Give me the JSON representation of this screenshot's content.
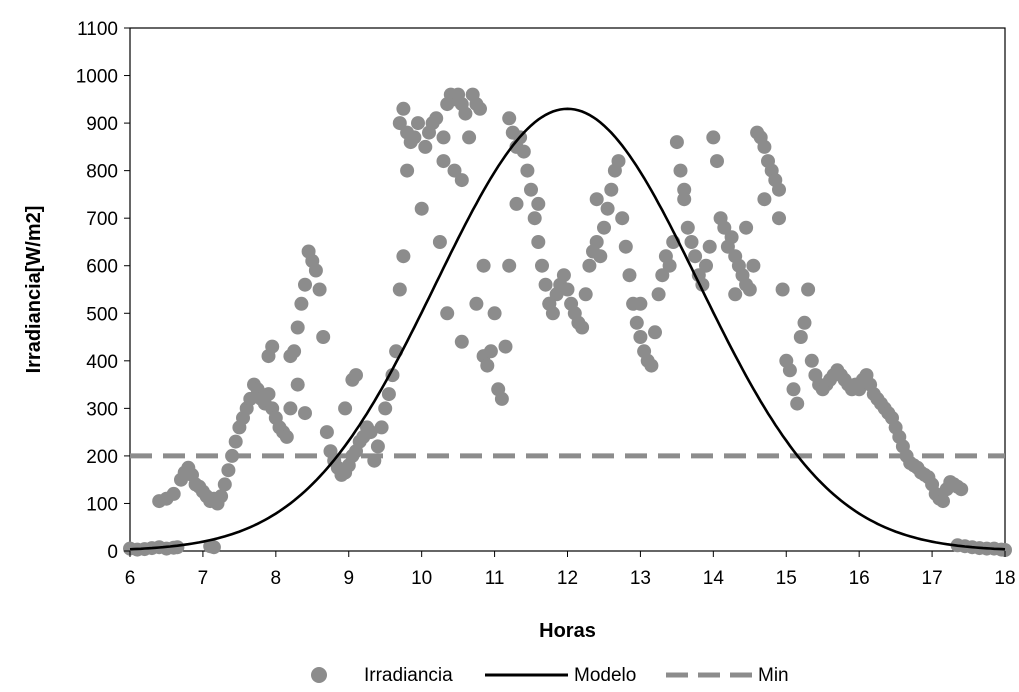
{
  "chart_data": {
    "type": "scatter",
    "title": "",
    "xlabel": "Horas",
    "ylabel": "Irradiancia[W/m2]",
    "xlim": [
      6,
      18
    ],
    "ylim": [
      0,
      1100
    ],
    "x_ticks": [
      "6",
      "7",
      "8",
      "9",
      "10",
      "11",
      "12",
      "13",
      "14",
      "15",
      "16",
      "17",
      "18"
    ],
    "y_ticks": [
      "0",
      "100",
      "200",
      "300",
      "400",
      "500",
      "600",
      "700",
      "800",
      "900",
      "1000",
      "1100"
    ],
    "grid": false,
    "legend_position": "bottom",
    "colors": {
      "points": "#8c8c8c",
      "model": "#000000",
      "min": "#8c8c8c"
    },
    "series": [
      {
        "name": "Irradiancia",
        "kind": "scatter",
        "points": [
          [
            6.0,
            5
          ],
          [
            6.1,
            3
          ],
          [
            6.2,
            4
          ],
          [
            6.3,
            6
          ],
          [
            6.4,
            8
          ],
          [
            6.5,
            5
          ],
          [
            6.6,
            7
          ],
          [
            6.65,
            8
          ],
          [
            6.4,
            105
          ],
          [
            6.5,
            110
          ],
          [
            6.6,
            120
          ],
          [
            6.7,
            150
          ],
          [
            6.75,
            165
          ],
          [
            6.8,
            175
          ],
          [
            6.85,
            160
          ],
          [
            6.9,
            140
          ],
          [
            6.95,
            135
          ],
          [
            7.0,
            125
          ],
          [
            7.05,
            115
          ],
          [
            7.1,
            105
          ],
          [
            7.15,
            110
          ],
          [
            7.2,
            100
          ],
          [
            7.25,
            115
          ],
          [
            7.3,
            140
          ],
          [
            7.35,
            170
          ],
          [
            7.4,
            200
          ],
          [
            7.45,
            230
          ],
          [
            7.5,
            260
          ],
          [
            7.55,
            280
          ],
          [
            7.6,
            300
          ],
          [
            7.65,
            320
          ],
          [
            7.7,
            350
          ],
          [
            7.75,
            340
          ],
          [
            7.8,
            320
          ],
          [
            7.85,
            310
          ],
          [
            7.9,
            330
          ],
          [
            7.95,
            300
          ],
          [
            8.0,
            280
          ],
          [
            8.05,
            260
          ],
          [
            8.1,
            250
          ],
          [
            8.15,
            240
          ],
          [
            8.2,
            300
          ],
          [
            8.25,
            420
          ],
          [
            8.3,
            470
          ],
          [
            8.35,
            520
          ],
          [
            8.4,
            560
          ],
          [
            8.45,
            630
          ],
          [
            8.5,
            610
          ],
          [
            8.55,
            590
          ],
          [
            8.6,
            550
          ],
          [
            8.65,
            450
          ],
          [
            8.7,
            250
          ],
          [
            8.75,
            210
          ],
          [
            8.8,
            190
          ],
          [
            8.85,
            175
          ],
          [
            8.9,
            160
          ],
          [
            8.95,
            165
          ],
          [
            9.0,
            180
          ],
          [
            9.05,
            200
          ],
          [
            9.1,
            210
          ],
          [
            9.15,
            230
          ],
          [
            9.2,
            240
          ],
          [
            9.25,
            260
          ],
          [
            9.3,
            250
          ],
          [
            9.35,
            190
          ],
          [
            9.4,
            220
          ],
          [
            9.45,
            260
          ],
          [
            9.5,
            300
          ],
          [
            9.55,
            330
          ],
          [
            9.6,
            370
          ],
          [
            9.65,
            420
          ],
          [
            9.7,
            550
          ],
          [
            9.75,
            620
          ],
          [
            9.8,
            800
          ],
          [
            7.1,
            10
          ],
          [
            7.15,
            8
          ],
          [
            8.3,
            350
          ],
          [
            8.4,
            290
          ],
          [
            7.9,
            410
          ],
          [
            7.95,
            430
          ],
          [
            8.2,
            410
          ],
          [
            9.05,
            360
          ],
          [
            9.1,
            370
          ],
          [
            8.95,
            300
          ],
          [
            9.7,
            900
          ],
          [
            9.75,
            930
          ],
          [
            9.8,
            880
          ],
          [
            9.85,
            860
          ],
          [
            9.9,
            870
          ],
          [
            9.95,
            900
          ],
          [
            10.0,
            720
          ],
          [
            10.05,
            850
          ],
          [
            10.1,
            880
          ],
          [
            10.15,
            900
          ],
          [
            10.2,
            910
          ],
          [
            10.25,
            650
          ],
          [
            10.3,
            870
          ],
          [
            10.35,
            940
          ],
          [
            10.4,
            960
          ],
          [
            10.45,
            950
          ],
          [
            10.5,
            960
          ],
          [
            10.55,
            940
          ],
          [
            10.6,
            920
          ],
          [
            10.65,
            870
          ],
          [
            10.7,
            960
          ],
          [
            10.75,
            940
          ],
          [
            10.8,
            930
          ],
          [
            10.85,
            600
          ],
          [
            10.3,
            820
          ],
          [
            10.45,
            800
          ],
          [
            10.55,
            780
          ],
          [
            10.35,
            500
          ],
          [
            10.55,
            440
          ],
          [
            10.75,
            520
          ],
          [
            10.85,
            410
          ],
          [
            10.9,
            390
          ],
          [
            10.95,
            420
          ],
          [
            11.0,
            500
          ],
          [
            11.05,
            340
          ],
          [
            11.1,
            320
          ],
          [
            11.15,
            430
          ],
          [
            11.2,
            600
          ],
          [
            11.2,
            910
          ],
          [
            11.25,
            880
          ],
          [
            11.3,
            850
          ],
          [
            11.35,
            870
          ],
          [
            11.4,
            840
          ],
          [
            11.45,
            800
          ],
          [
            11.5,
            760
          ],
          [
            11.55,
            700
          ],
          [
            11.6,
            650
          ],
          [
            11.65,
            600
          ],
          [
            11.7,
            560
          ],
          [
            11.75,
            520
          ],
          [
            11.8,
            500
          ],
          [
            11.85,
            540
          ],
          [
            11.9,
            560
          ],
          [
            11.95,
            580
          ],
          [
            12.0,
            550
          ],
          [
            12.05,
            520
          ],
          [
            12.1,
            500
          ],
          [
            12.15,
            480
          ],
          [
            12.2,
            470
          ],
          [
            12.25,
            540
          ],
          [
            12.3,
            600
          ],
          [
            12.35,
            630
          ],
          [
            12.4,
            650
          ],
          [
            12.45,
            620
          ],
          [
            12.5,
            680
          ],
          [
            12.55,
            720
          ],
          [
            12.6,
            760
          ],
          [
            12.65,
            800
          ],
          [
            12.7,
            820
          ],
          [
            12.75,
            700
          ],
          [
            12.8,
            640
          ],
          [
            12.85,
            580
          ],
          [
            12.9,
            520
          ],
          [
            12.95,
            480
          ],
          [
            13.0,
            450
          ],
          [
            13.05,
            420
          ],
          [
            13.1,
            400
          ],
          [
            13.15,
            390
          ],
          [
            13.2,
            460
          ],
          [
            13.25,
            540
          ],
          [
            13.3,
            580
          ],
          [
            13.35,
            620
          ],
          [
            13.4,
            600
          ],
          [
            13.45,
            650
          ],
          [
            13.5,
            860
          ],
          [
            13.55,
            800
          ],
          [
            13.6,
            760
          ],
          [
            13.65,
            680
          ],
          [
            13.7,
            650
          ],
          [
            13.75,
            620
          ],
          [
            13.8,
            580
          ],
          [
            13.85,
            560
          ],
          [
            13.9,
            600
          ],
          [
            13.95,
            640
          ],
          [
            14.0,
            870
          ],
          [
            14.05,
            820
          ],
          [
            14.1,
            700
          ],
          [
            14.15,
            680
          ],
          [
            14.2,
            640
          ],
          [
            14.25,
            660
          ],
          [
            14.3,
            620
          ],
          [
            14.35,
            600
          ],
          [
            14.4,
            580
          ],
          [
            14.45,
            560
          ],
          [
            14.5,
            550
          ],
          [
            14.55,
            600
          ],
          [
            14.6,
            880
          ],
          [
            14.65,
            870
          ],
          [
            14.7,
            850
          ],
          [
            14.75,
            820
          ],
          [
            14.8,
            800
          ],
          [
            14.85,
            780
          ],
          [
            14.9,
            700
          ],
          [
            14.95,
            550
          ],
          [
            11.3,
            730
          ],
          [
            11.6,
            730
          ],
          [
            11.75,
            520
          ],
          [
            12.4,
            740
          ],
          [
            13.0,
            520
          ],
          [
            13.6,
            740
          ],
          [
            14.3,
            540
          ],
          [
            14.45,
            680
          ],
          [
            14.7,
            740
          ],
          [
            14.9,
            760
          ],
          [
            15.0,
            400
          ],
          [
            15.05,
            380
          ],
          [
            15.1,
            340
          ],
          [
            15.15,
            310
          ],
          [
            15.2,
            450
          ],
          [
            15.25,
            480
          ],
          [
            15.3,
            550
          ],
          [
            15.35,
            400
          ],
          [
            15.4,
            370
          ],
          [
            15.45,
            350
          ],
          [
            15.5,
            340
          ],
          [
            15.55,
            350
          ],
          [
            15.6,
            360
          ],
          [
            15.65,
            370
          ],
          [
            15.7,
            380
          ],
          [
            15.75,
            370
          ],
          [
            15.8,
            360
          ],
          [
            15.85,
            350
          ],
          [
            15.9,
            340
          ],
          [
            15.95,
            350
          ],
          [
            16.0,
            340
          ],
          [
            16.05,
            360
          ],
          [
            16.1,
            370
          ],
          [
            16.15,
            350
          ],
          [
            16.2,
            330
          ],
          [
            16.25,
            320
          ],
          [
            16.3,
            310
          ],
          [
            16.35,
            300
          ],
          [
            16.4,
            290
          ],
          [
            16.45,
            280
          ],
          [
            16.5,
            260
          ],
          [
            16.55,
            240
          ],
          [
            16.6,
            220
          ],
          [
            16.65,
            200
          ],
          [
            16.7,
            185
          ],
          [
            16.75,
            180
          ],
          [
            16.8,
            175
          ],
          [
            16.85,
            165
          ],
          [
            16.9,
            160
          ],
          [
            16.95,
            155
          ],
          [
            17.0,
            140
          ],
          [
            17.05,
            120
          ],
          [
            17.1,
            110
          ],
          [
            17.15,
            105
          ],
          [
            17.2,
            130
          ],
          [
            17.25,
            145
          ],
          [
            17.3,
            140
          ],
          [
            17.35,
            135
          ],
          [
            17.4,
            130
          ],
          [
            17.35,
            12
          ],
          [
            17.45,
            10
          ],
          [
            17.55,
            8
          ],
          [
            17.65,
            6
          ],
          [
            17.75,
            5
          ],
          [
            17.85,
            5
          ],
          [
            17.95,
            3
          ],
          [
            18.0,
            2
          ]
        ]
      },
      {
        "name": "Modelo",
        "kind": "line",
        "peak": 930,
        "center": 12,
        "sigma": 1.8
      },
      {
        "name": "Min",
        "kind": "dashed-line",
        "value": 200
      }
    ]
  }
}
